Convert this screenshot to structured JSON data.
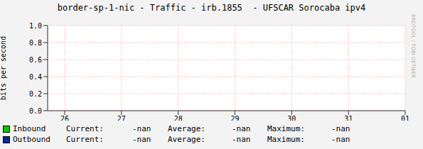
{
  "chart_data": {
    "type": "line",
    "title": "border-sp-1-nic - Traffic - irb.1855  - UFSCAR Sorocaba ipv4",
    "y_label": "bits per second",
    "categories": [
      "26",
      "27",
      "28",
      "29",
      "30",
      "31",
      "01"
    ],
    "series": [
      {
        "name": "Inbound",
        "color": "#00cc00",
        "values": [
          null,
          null,
          null,
          null,
          null,
          null,
          null
        ],
        "current": "-nan",
        "average": "-nan",
        "maximum": "-nan"
      },
      {
        "name": "Outbound",
        "color": "#002a97",
        "values": [
          null,
          null,
          null,
          null,
          null,
          null,
          null
        ],
        "current": "-nan",
        "average": "-nan",
        "maximum": "-nan"
      }
    ],
    "stat_labels": [
      "Current:",
      "Average:",
      "Maximum:"
    ],
    "ylim": [
      0,
      1
    ],
    "yticks": [
      {
        "value": 0,
        "label": "0.0"
      },
      {
        "value": 0.2,
        "label": "0.2"
      },
      {
        "value": 0.4,
        "label": "0.4"
      },
      {
        "value": 0.6,
        "label": "0.6"
      },
      {
        "value": 0.8,
        "label": "0.8"
      },
      {
        "value": 1,
        "label": "1.0"
      }
    ],
    "grid": true,
    "annotations": [
      "RRDTOOL / TOBI OETIKER"
    ]
  }
}
